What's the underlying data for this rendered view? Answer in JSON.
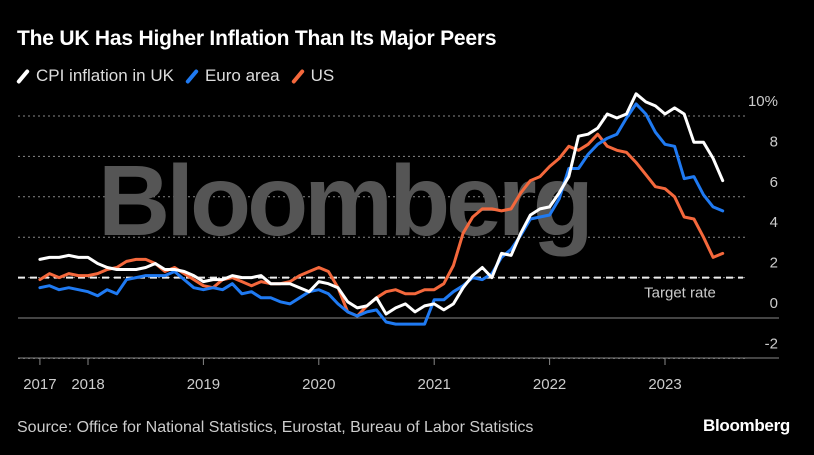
{
  "title": "The UK Has Higher Inflation Than Its Major Peers",
  "source": "Source: Office for National Statistics, Eurostat, Bureau of Labor Statistics",
  "brand": "Bloomberg",
  "watermark": "Bloomberg",
  "chart_data": {
    "type": "line",
    "title": "The UK Has Higher Inflation Than Its Major Peers",
    "xlabel": "",
    "ylabel": "",
    "x_start": "2017-08",
    "x_end": "2023-07",
    "frequency": "monthly",
    "x_ticks": [
      "2017",
      "2018",
      "2019",
      "2020",
      "2021",
      "2022",
      "2023"
    ],
    "y_ticks": [
      "10%",
      "8",
      "6",
      "4",
      "2",
      "0",
      "-2"
    ],
    "ylim": [
      -2,
      10
    ],
    "grid": true,
    "legend_position": "top-left",
    "target_rate": {
      "value": 2,
      "label": "Target rate"
    },
    "series": [
      {
        "name": "CPI inflation in UK",
        "color": "#ffffff",
        "values": [
          2.9,
          3.0,
          3.0,
          3.1,
          3.0,
          3.0,
          2.7,
          2.5,
          2.4,
          2.4,
          2.4,
          2.5,
          2.7,
          2.4,
          2.4,
          2.3,
          2.1,
          1.8,
          1.9,
          1.9,
          2.1,
          2.0,
          2.0,
          2.1,
          1.7,
          1.7,
          1.7,
          1.5,
          1.3,
          1.8,
          1.7,
          1.5,
          0.8,
          0.5,
          0.6,
          1.0,
          0.2,
          0.5,
          0.7,
          0.3,
          0.6,
          0.7,
          0.4,
          0.7,
          1.5,
          2.1,
          2.5,
          2.0,
          3.2,
          3.1,
          4.2,
          5.1,
          5.4,
          5.5,
          6.2,
          7.0,
          9.0,
          9.1,
          9.4,
          10.1,
          9.9,
          10.1,
          11.1,
          10.7,
          10.5,
          10.1,
          10.4,
          10.1,
          8.7,
          8.7,
          7.9,
          6.8
        ]
      },
      {
        "name": "Euro area",
        "color": "#1f7af2",
        "values": [
          1.5,
          1.6,
          1.4,
          1.5,
          1.4,
          1.3,
          1.1,
          1.4,
          1.2,
          1.9,
          2.0,
          2.1,
          2.1,
          2.1,
          2.3,
          1.9,
          1.5,
          1.4,
          1.5,
          1.4,
          1.7,
          1.2,
          1.3,
          1.0,
          1.0,
          0.8,
          0.7,
          1.0,
          1.3,
          1.4,
          1.2,
          0.7,
          0.3,
          0.1,
          0.3,
          0.4,
          -0.2,
          -0.3,
          -0.3,
          -0.3,
          -0.3,
          0.9,
          0.9,
          1.3,
          1.6,
          2.0,
          1.9,
          2.2,
          3.0,
          3.4,
          4.1,
          4.9,
          5.0,
          5.1,
          5.9,
          7.4,
          7.4,
          8.1,
          8.6,
          8.9,
          9.1,
          9.9,
          10.6,
          10.1,
          9.2,
          8.6,
          8.5,
          6.9,
          7.0,
          6.1,
          5.5,
          5.3
        ]
      },
      {
        "name": "US",
        "color": "#f4683c",
        "values": [
          1.9,
          2.2,
          2.0,
          2.2,
          2.1,
          2.1,
          2.2,
          2.4,
          2.5,
          2.8,
          2.9,
          2.9,
          2.7,
          2.3,
          2.5,
          2.2,
          1.9,
          1.6,
          1.5,
          1.9,
          2.0,
          1.8,
          1.6,
          1.8,
          1.7,
          1.7,
          1.8,
          2.1,
          2.3,
          2.5,
          2.3,
          1.5,
          0.3,
          0.1,
          0.6,
          1.0,
          1.3,
          1.4,
          1.2,
          1.2,
          1.4,
          1.4,
          1.7,
          2.6,
          4.2,
          5.0,
          5.4,
          5.4,
          5.3,
          5.4,
          6.2,
          6.8,
          7.0,
          7.5,
          7.9,
          8.5,
          8.3,
          8.6,
          9.1,
          8.5,
          8.3,
          8.2,
          7.7,
          7.1,
          6.5,
          6.4,
          6.0,
          5.0,
          4.9,
          4.0,
          3.0,
          3.2
        ]
      }
    ]
  }
}
